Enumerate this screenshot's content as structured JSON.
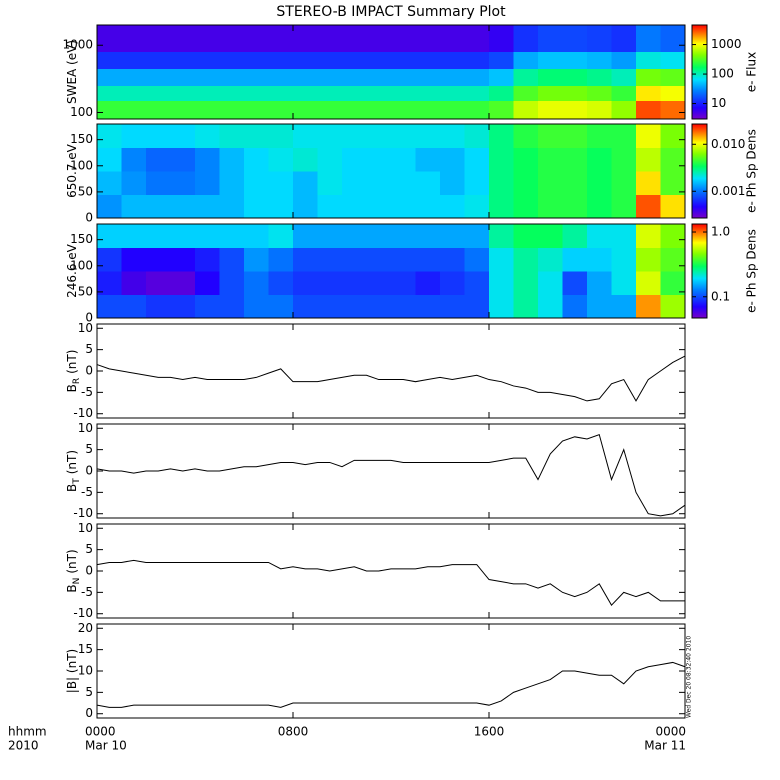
{
  "title": "STEREO-B IMPACT Summary Plot",
  "xlim": [
    0,
    24
  ],
  "xticks": [
    {
      "value": 0,
      "label": "0000"
    },
    {
      "value": 8,
      "label": "0800"
    },
    {
      "value": 16,
      "label": "1600"
    },
    {
      "value": 24,
      "label": "0000"
    }
  ],
  "xtick_dates": [
    "Mar 10",
    null,
    null,
    "Mar 11"
  ],
  "x_label": "hhmm",
  "x_sublabel": "2010",
  "timestamp": "Wed Dec 20 08:32:40 2010",
  "chart_data": [
    {
      "type": "heatmap",
      "ylabel": "SWEA (eV)",
      "ylog": true,
      "ylim": [
        80,
        2000
      ],
      "yticks": [
        100,
        1000
      ],
      "xbins": [
        0,
        1,
        2,
        3,
        4,
        5,
        6,
        7,
        8,
        9,
        10,
        11,
        12,
        13,
        14,
        15,
        16,
        17,
        18,
        19,
        20,
        21,
        22,
        23,
        24
      ],
      "ybins": [
        80,
        150,
        250,
        450,
        800,
        2000
      ],
      "values": [
        [
          250,
          250,
          250,
          250,
          250,
          250,
          250,
          250,
          250,
          250,
          250,
          250,
          250,
          250,
          250,
          250,
          300,
          700,
          900,
          900,
          800,
          500,
          3000,
          2500
        ],
        [
          100,
          100,
          100,
          100,
          100,
          100,
          100,
          100,
          100,
          100,
          100,
          100,
          100,
          100,
          100,
          100,
          130,
          300,
          400,
          400,
          350,
          250,
          1200,
          1000
        ],
        [
          40,
          40,
          40,
          40,
          40,
          40,
          40,
          40,
          40,
          40,
          40,
          40,
          40,
          40,
          40,
          40,
          50,
          120,
          150,
          150,
          130,
          100,
          400,
          350
        ],
        [
          12,
          12,
          12,
          12,
          12,
          12,
          12,
          12,
          12,
          12,
          12,
          12,
          12,
          12,
          12,
          12,
          15,
          40,
          50,
          50,
          45,
          35,
          80,
          70
        ],
        [
          5,
          5,
          5,
          5,
          5,
          5,
          5,
          5,
          5,
          5,
          5,
          5,
          5,
          5,
          5,
          5,
          6,
          12,
          15,
          15,
          14,
          12,
          25,
          20
        ]
      ],
      "clog": true,
      "clim": [
        3,
        4600
      ],
      "cticks": [
        10,
        100,
        1000
      ],
      "clabel": "e- Flux"
    },
    {
      "type": "heatmap",
      "ylabel": "650.7 eV",
      "ylog": false,
      "ylim": [
        0,
        180
      ],
      "yticks": [
        0,
        50,
        100,
        150
      ],
      "xbins": [
        0,
        1,
        2,
        3,
        4,
        5,
        6,
        7,
        8,
        9,
        10,
        11,
        12,
        13,
        14,
        15,
        16,
        17,
        18,
        19,
        20,
        21,
        22,
        23,
        24
      ],
      "ybins": [
        0,
        45,
        90,
        135,
        180
      ],
      "values": [
        [
          0.0012,
          0.0015,
          0.0015,
          0.0015,
          0.0015,
          0.0015,
          0.0018,
          0.0018,
          0.0015,
          0.0018,
          0.0018,
          0.0018,
          0.0018,
          0.0018,
          0.0018,
          0.002,
          0.003,
          0.0035,
          0.004,
          0.004,
          0.0035,
          0.004,
          0.02,
          0.012
        ],
        [
          0.0015,
          0.0012,
          0.001,
          0.001,
          0.0011,
          0.0015,
          0.0018,
          0.0018,
          0.0015,
          0.002,
          0.0018,
          0.0018,
          0.0018,
          0.0018,
          0.0015,
          0.0018,
          0.003,
          0.0035,
          0.004,
          0.004,
          0.0035,
          0.004,
          0.012,
          0.005
        ],
        [
          0.0018,
          0.0011,
          0.0009,
          0.0009,
          0.0011,
          0.0015,
          0.0018,
          0.002,
          0.0022,
          0.002,
          0.0018,
          0.0018,
          0.0018,
          0.0015,
          0.0015,
          0.0018,
          0.003,
          0.0035,
          0.004,
          0.004,
          0.0035,
          0.004,
          0.008,
          0.005
        ],
        [
          0.002,
          0.0018,
          0.0018,
          0.0018,
          0.002,
          0.0022,
          0.0022,
          0.0022,
          0.002,
          0.002,
          0.002,
          0.002,
          0.002,
          0.002,
          0.002,
          0.0022,
          0.003,
          0.004,
          0.0045,
          0.0045,
          0.004,
          0.004,
          0.01,
          0.006
        ]
      ],
      "clog": true,
      "clim": [
        0.00027,
        0.027
      ],
      "cticks": [
        0.001,
        {
          "value": 0.01,
          "label": "0.010"
        }
      ],
      "clabel": "e- Ph Sp Dens"
    },
    {
      "type": "heatmap",
      "ylabel": "246.6 eV",
      "ylog": false,
      "ylim": [
        0,
        180
      ],
      "yticks": [
        0,
        50,
        100,
        150
      ],
      "xbins": [
        0,
        1,
        2,
        3,
        4,
        5,
        6,
        7,
        8,
        9,
        10,
        11,
        12,
        13,
        14,
        15,
        16,
        17,
        18,
        19,
        20,
        21,
        22,
        23,
        24
      ],
      "ybins": [
        0,
        45,
        90,
        135,
        180
      ],
      "values": [
        [
          0.1,
          0.1,
          0.09,
          0.09,
          0.1,
          0.1,
          0.12,
          0.12,
          0.1,
          0.1,
          0.1,
          0.1,
          0.1,
          0.1,
          0.1,
          0.1,
          0.2,
          0.25,
          0.2,
          0.12,
          0.15,
          0.15,
          0.9,
          0.5
        ],
        [
          0.08,
          0.06,
          0.055,
          0.055,
          0.07,
          0.1,
          0.12,
          0.1,
          0.09,
          0.09,
          0.09,
          0.09,
          0.09,
          0.08,
          0.09,
          0.1,
          0.2,
          0.25,
          0.2,
          0.1,
          0.15,
          0.2,
          0.6,
          0.35
        ],
        [
          0.09,
          0.07,
          0.07,
          0.07,
          0.08,
          0.1,
          0.14,
          0.12,
          0.1,
          0.1,
          0.1,
          0.1,
          0.1,
          0.1,
          0.1,
          0.12,
          0.2,
          0.25,
          0.22,
          0.18,
          0.18,
          0.2,
          0.5,
          0.4
        ],
        [
          0.18,
          0.18,
          0.18,
          0.18,
          0.18,
          0.18,
          0.18,
          0.2,
          0.15,
          0.15,
          0.15,
          0.15,
          0.15,
          0.15,
          0.15,
          0.15,
          0.25,
          0.3,
          0.3,
          0.25,
          0.2,
          0.2,
          0.6,
          0.45
        ]
      ],
      "clog": true,
      "clim": [
        0.047,
        1.33
      ],
      "cticks": [
        0.1,
        {
          "value": 1,
          "label": "1.0"
        }
      ],
      "clabel": "e- Ph Sp Dens"
    },
    {
      "type": "line",
      "ylabel": "B",
      "ylabel_sub": "R",
      "ylabel_unit": "(nT)",
      "ylim": [
        -11,
        11
      ],
      "yticks": [
        -10,
        -5,
        0,
        5,
        10
      ],
      "x": [
        0,
        0.5,
        1,
        1.5,
        2,
        2.5,
        3,
        3.5,
        4,
        4.5,
        5,
        5.5,
        6,
        6.5,
        7,
        7.5,
        8,
        8.5,
        9,
        9.5,
        10,
        10.5,
        11,
        11.5,
        12,
        12.5,
        13,
        13.5,
        14,
        14.5,
        15,
        15.5,
        16,
        16.5,
        17,
        17.5,
        18,
        18.5,
        19,
        19.5,
        20,
        20.5,
        21,
        21.5,
        22,
        22.5,
        23,
        23.5,
        24
      ],
      "values": [
        1.5,
        0.5,
        0,
        -0.5,
        -1,
        -1.5,
        -1.5,
        -2,
        -1.5,
        -2,
        -2,
        -2,
        -2,
        -1.5,
        -0.5,
        0.5,
        -2.5,
        -2.5,
        -2.5,
        -2,
        -1.5,
        -1,
        -1,
        -2,
        -2,
        -2,
        -2.5,
        -2,
        -1.5,
        -2,
        -1.5,
        -1,
        -2,
        -2.5,
        -3.5,
        -4,
        -5,
        -5,
        -5.5,
        -6,
        -7,
        -6.5,
        -3,
        -2,
        -7,
        -2,
        0,
        2,
        3.5
      ]
    },
    {
      "type": "line",
      "ylabel": "B",
      "ylabel_sub": "T",
      "ylabel_unit": "(nT)",
      "ylim": [
        -11,
        11
      ],
      "yticks": [
        -10,
        -5,
        0,
        5,
        10
      ],
      "x": [
        0,
        0.5,
        1,
        1.5,
        2,
        2.5,
        3,
        3.5,
        4,
        4.5,
        5,
        5.5,
        6,
        6.5,
        7,
        7.5,
        8,
        8.5,
        9,
        9.5,
        10,
        10.5,
        11,
        11.5,
        12,
        12.5,
        13,
        13.5,
        14,
        14.5,
        15,
        15.5,
        16,
        16.5,
        17,
        17.5,
        18,
        18.5,
        19,
        19.5,
        20,
        20.5,
        21,
        21.5,
        22,
        22.5,
        23,
        23.5,
        24
      ],
      "values": [
        0.5,
        0,
        0,
        -0.5,
        0,
        0,
        0.5,
        0,
        0.5,
        0,
        0,
        0.5,
        1,
        1,
        1.5,
        2,
        2,
        1.5,
        2,
        2,
        1,
        2.5,
        2.5,
        2.5,
        2.5,
        2,
        2,
        2,
        2,
        2,
        2,
        2,
        2,
        2.5,
        3,
        3,
        -2,
        4,
        7,
        8,
        7.5,
        8.5,
        -2,
        5,
        -5,
        -10,
        -10.5,
        -10,
        -8
      ]
    },
    {
      "type": "line",
      "ylabel": "B",
      "ylabel_sub": "N",
      "ylabel_unit": "(nT)",
      "ylim": [
        -11,
        11
      ],
      "yticks": [
        -10,
        -5,
        0,
        5,
        10
      ],
      "x": [
        0,
        0.5,
        1,
        1.5,
        2,
        2.5,
        3,
        3.5,
        4,
        4.5,
        5,
        5.5,
        6,
        6.5,
        7,
        7.5,
        8,
        8.5,
        9,
        9.5,
        10,
        10.5,
        11,
        11.5,
        12,
        12.5,
        13,
        13.5,
        14,
        14.5,
        15,
        15.5,
        16,
        16.5,
        17,
        17.5,
        18,
        18.5,
        19,
        19.5,
        20,
        20.5,
        21,
        21.5,
        22,
        22.5,
        23,
        23.5,
        24
      ],
      "values": [
        1.5,
        2,
        2,
        2.5,
        2,
        2,
        2,
        2,
        2,
        2,
        2,
        2,
        2,
        2,
        2,
        0.5,
        1,
        0.5,
        0.5,
        0,
        0.5,
        1,
        0,
        0,
        0.5,
        0.5,
        0.5,
        1,
        1,
        1.5,
        1.5,
        1.5,
        -2,
        -2.5,
        -3,
        -3,
        -4,
        -3,
        -5,
        -6,
        -5,
        -3,
        -8,
        -5,
        -6,
        -5,
        -7,
        -7,
        -7
      ]
    },
    {
      "type": "line",
      "ylabel": "|B| (nT)",
      "ylim": [
        -1,
        21
      ],
      "yticks": [
        0,
        5,
        10,
        15,
        20
      ],
      "x": [
        0,
        0.5,
        1,
        1.5,
        2,
        2.5,
        3,
        3.5,
        4,
        4.5,
        5,
        5.5,
        6,
        6.5,
        7,
        7.5,
        8,
        8.5,
        9,
        9.5,
        10,
        10.5,
        11,
        11.5,
        12,
        12.5,
        13,
        13.5,
        14,
        14.5,
        15,
        15.5,
        16,
        16.5,
        17,
        17.5,
        18,
        18.5,
        19,
        19.5,
        20,
        20.5,
        21,
        21.5,
        22,
        22.5,
        23,
        23.5,
        24
      ],
      "values": [
        2,
        1.5,
        1.5,
        2,
        2,
        2,
        2,
        2,
        2,
        2,
        2,
        2,
        2,
        2,
        2,
        1.5,
        2.5,
        2.5,
        2.5,
        2.5,
        2.5,
        2.5,
        2.5,
        2.5,
        2.5,
        2.5,
        2.5,
        2.5,
        2.5,
        2.5,
        2.5,
        2.5,
        2,
        3,
        5,
        6,
        7,
        8,
        10,
        10,
        9.5,
        9,
        9,
        7,
        10,
        11,
        11.5,
        12,
        11
      ]
    }
  ]
}
